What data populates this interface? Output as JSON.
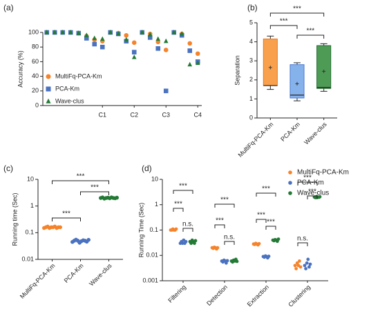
{
  "chart_data": [
    {
      "type": "scatter",
      "panel": "(a)",
      "y_label": "Accuracy (%)",
      "categories": [
        null,
        null,
        null,
        null,
        null,
        null,
        null,
        "C1",
        null,
        null,
        null,
        "C2",
        null,
        null,
        null,
        "C3",
        null,
        null,
        null,
        "C4"
      ],
      "ylim": [
        0,
        100
      ],
      "yticks": [
        0,
        20,
        40,
        60,
        80,
        100
      ],
      "legend": "lower left",
      "series": [
        {
          "name": "MultiFq-PCA-Km",
          "color": "#f5832a",
          "marker": "circle",
          "values": [
            100,
            100,
            100,
            100,
            99,
            95,
            90,
            88,
            100,
            99,
            96,
            86,
            100,
            98,
            87,
            76,
            100,
            98,
            85,
            71
          ]
        },
        {
          "name": "PCA-Km",
          "color": "#4a72c0",
          "marker": "square",
          "values": [
            100,
            100,
            100,
            100,
            99,
            92,
            84,
            80,
            100,
            98,
            88,
            73,
            100,
            93,
            78,
            20,
            100,
            96,
            75,
            60
          ]
        },
        {
          "name": "Wave-clus",
          "color": "#237a35",
          "marker": "triangle",
          "values": [
            100,
            100,
            100,
            100,
            99,
            96,
            92,
            91,
            100,
            98,
            90,
            66,
            100,
            97,
            91,
            88,
            100,
            98,
            56,
            58
          ]
        }
      ]
    },
    {
      "type": "box",
      "panel": "(b)",
      "y_label": "Separation",
      "categories": [
        "MultiFq-PCA-Km",
        "PCA-Km",
        "Wave-clus"
      ],
      "colors": [
        "#f8a04c",
        "#86b2ec",
        "#4e9b56"
      ],
      "edge_colors": [
        "#e8781c",
        "#4a78d0",
        "#1f6b2c"
      ],
      "boxes": [
        {
          "min": 1.5,
          "q1": 1.7,
          "median": 1.7,
          "q3": 4.15,
          "max": 4.3,
          "mean": 2.65
        },
        {
          "min": 0.9,
          "q1": 1.05,
          "median": 1.2,
          "q3": 2.8,
          "max": 2.9,
          "mean": 1.8
        },
        {
          "min": 1.4,
          "q1": 1.55,
          "median": 1.6,
          "q3": 3.8,
          "max": 3.9,
          "mean": 2.45
        }
      ],
      "ylim": [
        0,
        5
      ],
      "yticks": [
        0,
        1,
        2,
        3,
        4,
        5
      ],
      "annotations": [
        "***",
        "***",
        "***"
      ]
    },
    {
      "type": "dot",
      "panel": "(c)",
      "y_label": "Running time (Sec)",
      "log": true,
      "categories": [
        "MultiFq-PCA-Km",
        "PCA-Km",
        "Wave-clus"
      ],
      "colors": [
        "#f5832a",
        "#4a72c0",
        "#237a35"
      ],
      "values": [
        [
          0.15,
          0.16,
          0.17,
          0.15,
          0.16,
          0.16,
          0.17,
          0.15,
          0.16,
          0.16
        ],
        [
          0.045,
          0.05,
          0.055,
          0.05,
          0.042,
          0.048,
          0.052,
          0.05,
          0.046,
          0.054
        ],
        [
          2.0,
          2.1,
          1.9,
          2.0,
          2.05,
          1.95,
          2.1,
          2.0,
          1.95,
          2.05
        ]
      ],
      "ylim": [
        0.01,
        10
      ],
      "yticks": [
        0.01,
        0.1,
        1,
        10
      ],
      "annotations": [
        "***",
        "***",
        "***"
      ]
    },
    {
      "type": "grouped-dot",
      "panel": "(d)",
      "y_label": "Running Time (Sec)",
      "log": true,
      "categories": [
        "Filtering",
        "Detection",
        "Extraction",
        "Clustering"
      ],
      "legend": "upper right",
      "series": [
        {
          "name": "MultiFq-PCA-Km",
          "color": "#f5832a",
          "values": [
            [
              0.1,
              0.1,
              0.11,
              0.1,
              0.1,
              0.11
            ],
            [
              0.02,
              0.019,
              0.021,
              0.02,
              0.018,
              0.02
            ],
            [
              0.028,
              0.027,
              0.03,
              0.028,
              0.026,
              0.029
            ],
            [
              0.004,
              0.003,
              0.005,
              0.004,
              0.006,
              0.0035
            ]
          ]
        },
        {
          "name": "PCA-Km",
          "color": "#4a72c0",
          "values": [
            [
              0.03,
              0.035,
              0.03,
              0.04,
              0.03,
              0.035
            ],
            [
              0.006,
              0.0055,
              0.0065,
              0.006,
              0.005,
              0.0062
            ],
            [
              0.009,
              0.0085,
              0.0095,
              0.009,
              0.008,
              0.0092
            ],
            [
              0.004,
              0.003,
              0.005,
              0.007,
              0.0035,
              0.0045
            ]
          ]
        },
        {
          "name": "Wave-clus",
          "color": "#237a35",
          "values": [
            [
              0.035,
              0.03,
              0.04,
              0.035,
              0.03,
              0.038
            ],
            [
              0.006,
              0.0055,
              0.0065,
              0.006,
              0.007,
              0.0058
            ],
            [
              0.04,
              0.038,
              0.042,
              0.04,
              0.036,
              0.044
            ],
            [
              2.0,
              1.9,
              2.1,
              2.0,
              1.95,
              2.05
            ]
          ]
        }
      ],
      "ylim": [
        0.001,
        10
      ],
      "yticks": [
        0.001,
        0.01,
        0.1,
        1,
        10
      ],
      "annotations": [
        "***",
        "***",
        "n.s.",
        "***",
        "***",
        "n.s.",
        "***",
        "***",
        "***",
        "***",
        "***",
        "n.s."
      ]
    }
  ]
}
